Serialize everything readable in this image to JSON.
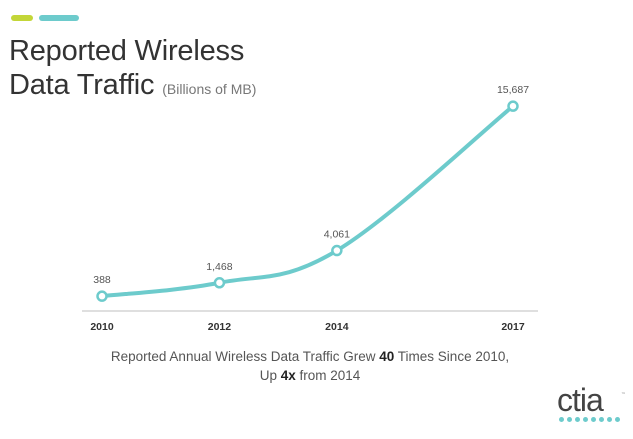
{
  "header": {
    "title_line1": "Reported Wireless",
    "title_line2": "Data Traffic",
    "subtitle": "(Billions of MB)"
  },
  "colors": {
    "accent_green": "#c3d638",
    "accent_teal": "#6dcbcc",
    "line": "#6dcbcc",
    "axis": "#cccccc",
    "text": "#333333"
  },
  "chart_data": {
    "type": "line",
    "title": "Reported Wireless Data Traffic",
    "subtitle": "(Billions of MB)",
    "x": [
      2010,
      2012,
      2014,
      2017
    ],
    "categories": [
      "2010",
      "2012",
      "2014",
      "2017"
    ],
    "series": [
      {
        "values": [
          388,
          1468,
          4061,
          15687
        ]
      }
    ],
    "data_labels": [
      "388",
      "1,468",
      "4,061",
      "15,687"
    ],
    "xlabel": "",
    "ylabel": "",
    "ylim": [
      0,
      16000
    ],
    "grid": false,
    "legend": "none"
  },
  "caption": {
    "line1_before": "Reported Annual Wireless Data Traffic Grew ",
    "line1_bold": "40",
    "line1_after": " Times Since 2010,",
    "line2_before": "Up ",
    "line2_bold": "4x",
    "line2_after": " from 2014"
  },
  "logo": {
    "text": "ctia",
    "trademark": "™",
    "icon": "ctia-logo-dots"
  }
}
